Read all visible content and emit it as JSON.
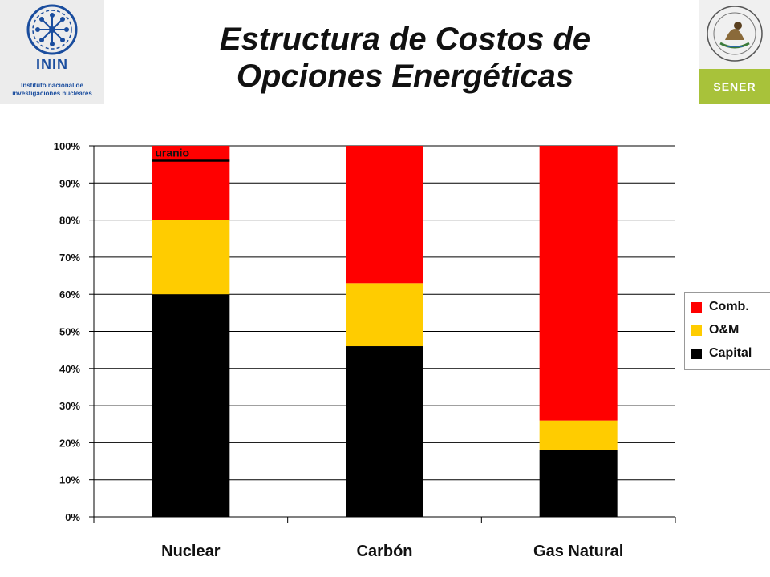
{
  "header": {
    "title_line1": "Estructura de Costos de",
    "title_line2": "Opciones Energéticas"
  },
  "logo_left": {
    "acronym": "ININ",
    "caption_line1": "Instituto nacional de",
    "caption_line2": "investigaciones nucleares",
    "icon": "atom-emblem-icon"
  },
  "logo_right": {
    "band_text": "SENER",
    "icon": "mexican-coat-of-arms-icon"
  },
  "colors": {
    "capital": "#000000",
    "om": "#ffcc00",
    "comb": "#ff0000",
    "grid": "#000000"
  },
  "chart_data": {
    "type": "bar",
    "stacked": true,
    "percent": true,
    "categories": [
      "Nuclear",
      "Carbón",
      "Gas Natural"
    ],
    "series": [
      {
        "name": "Capital",
        "values": [
          60,
          46,
          18
        ]
      },
      {
        "name": "O&M",
        "values": [
          20,
          17,
          8
        ]
      },
      {
        "name": "Comb.",
        "values": [
          20,
          37,
          74
        ]
      }
    ],
    "yticks": [
      "0%",
      "10%",
      "20%",
      "30%",
      "40%",
      "50%",
      "60%",
      "70%",
      "80%",
      "90%",
      "100%"
    ],
    "ylim": [
      0,
      100
    ],
    "grid": true,
    "legend": "right",
    "annotation": {
      "text": "uranio",
      "category": "Nuclear",
      "value": 96
    },
    "xlabel": "",
    "ylabel": ""
  }
}
